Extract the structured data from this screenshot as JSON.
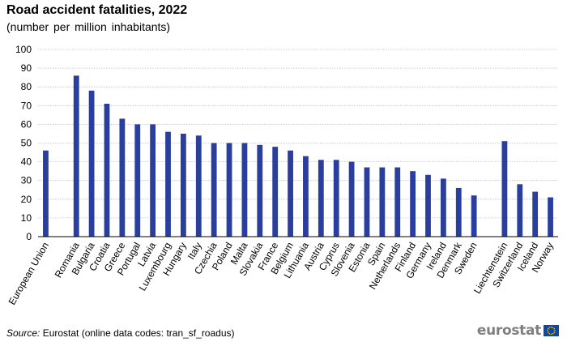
{
  "chart_data": {
    "type": "bar",
    "title": "Road accident fatalities, 2022",
    "subtitle": "(number  per million  inhabitants)",
    "xlabel": "",
    "ylabel": "",
    "ylim": [
      0,
      100
    ],
    "yticks": [
      0,
      10,
      20,
      30,
      40,
      50,
      60,
      70,
      80,
      90,
      100
    ],
    "grid": true,
    "bar_color": "#2a3f9d",
    "categories": [
      "European Union",
      "Romania",
      "Bulgaria",
      "Croatia",
      "Greece",
      "Portugal",
      "Latvia",
      "Luxembourg",
      "Hungary",
      "Italy",
      "Czechia",
      "Poland",
      "Malta",
      "Slovakia",
      "France",
      "Belgium",
      "Lithuania",
      "Austria",
      "Cyprus",
      "Slovenia",
      "Estonia",
      "Spain",
      "Netherlands",
      "Finland",
      "Germany",
      "Ireland",
      "Denmark",
      "Sweden",
      "Liechtenstein",
      "Switzerland",
      "Iceland",
      "Norway"
    ],
    "values": [
      46,
      86,
      78,
      71,
      63,
      60,
      60,
      56,
      55,
      54,
      50,
      50,
      50,
      49,
      48,
      46,
      43,
      41,
      41,
      40,
      37,
      37,
      37,
      35,
      33,
      31,
      26,
      22,
      51,
      28,
      24,
      21
    ],
    "group_sizes": [
      1,
      27,
      4
    ]
  },
  "footer": {
    "source_label": "Source:",
    "source_text": " Eurostat (online data codes: tran_sf_roadus)",
    "logo_text": "eurostat"
  },
  "colors": {
    "bar": "#2a3f9d",
    "grid": "#bfbfbf",
    "logo_text": "#7f7f7f",
    "flag_blue": "#0e47a1",
    "flag_star": "#ffd617"
  }
}
